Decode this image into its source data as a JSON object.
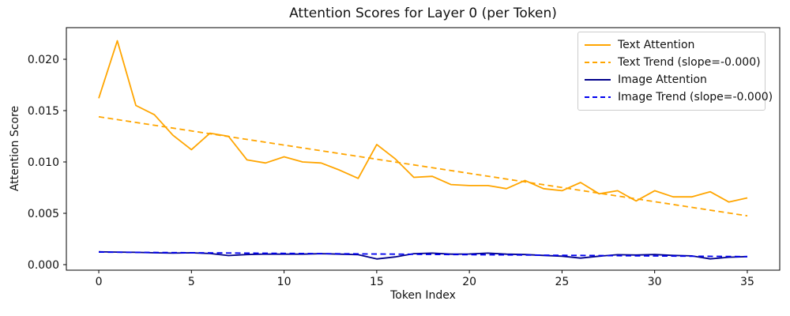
{
  "title": "Attention Scores for Layer 0 (per Token)",
  "chart_data": {
    "type": "line",
    "title": "Attention Scores for Layer 0 (per Token)",
    "xlabel": "Token Index",
    "ylabel": "Attention Score",
    "grid": false,
    "legend_position": "upper right",
    "xlim": [
      -1.75,
      36.75
    ],
    "ylim": [
      -0.00054,
      0.02308
    ],
    "xticks": [
      {
        "value": 0,
        "label": "0"
      },
      {
        "value": 5,
        "label": "5"
      },
      {
        "value": 10,
        "label": "10"
      },
      {
        "value": 15,
        "label": "15"
      },
      {
        "value": 20,
        "label": "20"
      },
      {
        "value": 25,
        "label": "25"
      },
      {
        "value": 30,
        "label": "30"
      },
      {
        "value": 35,
        "label": "35"
      }
    ],
    "yticks": [
      {
        "value": 0.0,
        "label": "0.000"
      },
      {
        "value": 0.005,
        "label": "0.005"
      },
      {
        "value": 0.01,
        "label": "0.010"
      },
      {
        "value": 0.015,
        "label": "0.015"
      },
      {
        "value": 0.02,
        "label": "0.020"
      }
    ],
    "x": [
      0,
      1,
      2,
      3,
      4,
      5,
      6,
      7,
      8,
      9,
      10,
      11,
      12,
      13,
      14,
      15,
      16,
      17,
      18,
      19,
      20,
      21,
      22,
      23,
      24,
      25,
      26,
      27,
      28,
      29,
      30,
      31,
      32,
      33,
      34,
      35
    ],
    "series": [
      {
        "id": "text-attention",
        "name": "Text Attention",
        "color": "#FFA500",
        "style": "solid",
        "values": [
          0.0162,
          0.0218,
          0.0155,
          0.0146,
          0.0126,
          0.0112,
          0.0128,
          0.0125,
          0.0102,
          0.0099,
          0.0105,
          0.01,
          0.0099,
          0.0092,
          0.0084,
          0.0117,
          0.0103,
          0.0085,
          0.0086,
          0.0078,
          0.0077,
          0.0077,
          0.0074,
          0.0082,
          0.0074,
          0.0072,
          0.008,
          0.0069,
          0.0072,
          0.0062,
          0.0072,
          0.0066,
          0.0066,
          0.0071,
          0.0061,
          0.0065
        ]
      },
      {
        "id": "text-trend",
        "name": "Text Trend (slope=-0.000)",
        "color": "#FFA500",
        "style": "dashed",
        "x": [
          0,
          35
        ],
        "values": [
          0.0144,
          0.00475
        ]
      },
      {
        "id": "image-attention",
        "name": "Image Attention",
        "color": "#00008B",
        "style": "solid",
        "values": [
          0.00125,
          0.00122,
          0.0012,
          0.00115,
          0.00112,
          0.00115,
          0.00108,
          0.00088,
          0.00098,
          0.00103,
          0.00102,
          0.00102,
          0.00107,
          0.00102,
          0.00097,
          0.00055,
          0.00075,
          0.00107,
          0.00112,
          0.00102,
          0.00104,
          0.00112,
          0.00102,
          0.00098,
          0.0009,
          0.00082,
          0.00064,
          0.00082,
          0.00097,
          0.00094,
          0.00098,
          0.0009,
          0.00085,
          0.00056,
          0.00072,
          0.00078
        ]
      },
      {
        "id": "image-trend",
        "name": "Image Trend (slope=-0.000)",
        "color": "#0000EE",
        "style": "dashed",
        "x": [
          0,
          35
        ],
        "values": [
          0.00122,
          0.00078
        ]
      }
    ]
  }
}
